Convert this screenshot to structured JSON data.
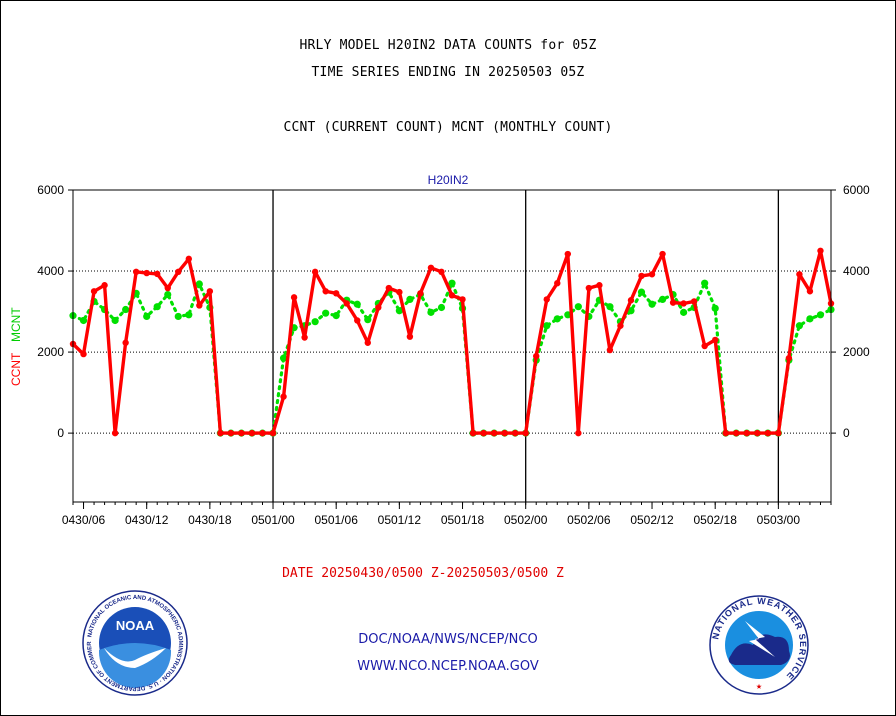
{
  "header": {
    "line1": "HRLY MODEL H20IN2 DATA COUNTS for 05Z",
    "line2": "TIME SERIES ENDING IN 20250503 05Z",
    "line3": "CCNT (CURRENT COUNT) MCNT (MONTHLY COUNT)"
  },
  "date_range": "DATE 20250430/0500 Z-20250503/0500 Z",
  "footer": {
    "line1": "DOC/NOAA/NWS/NCEP/NCO",
    "line2": "WWW.NCO.NCEP.NOAA.GOV"
  },
  "logos": {
    "noaa": {
      "center_text": "NOAA",
      "ring_text": "NATIONAL OCEANIC AND ATMOSPHERIC ADMINISTRATION · U.S. DEPARTMENT OF COMMERCE"
    },
    "nws": {
      "ring_text": "NATIONAL WEATHER SERVICE"
    }
  },
  "colors": {
    "ccnt": "#ff0000",
    "mcnt": "#00e000",
    "title": "#1a1aa8",
    "date": "#e00000"
  },
  "chart_data": {
    "type": "line",
    "title": "H20IN2",
    "ylabel_ccnt": "CCNT",
    "ylabel_mcnt": "MCNT",
    "ylim": [
      -1700,
      6000
    ],
    "yticks": [
      0,
      2000,
      4000,
      6000
    ],
    "gridlines_y": [
      2000,
      4000
    ],
    "x_start": "0430/05",
    "x_end": "0503/05",
    "xlim_hours": [
      0,
      72
    ],
    "day_dividers_hours": [
      19,
      43,
      67
    ],
    "xticks": [
      {
        "label": "0430/06",
        "hour": 1
      },
      {
        "label": "0430/12",
        "hour": 7
      },
      {
        "label": "0430/18",
        "hour": 13
      },
      {
        "label": "0501/00",
        "hour": 19
      },
      {
        "label": "0501/06",
        "hour": 25
      },
      {
        "label": "0501/12",
        "hour": 31
      },
      {
        "label": "0501/18",
        "hour": 37
      },
      {
        "label": "0502/00",
        "hour": 43
      },
      {
        "label": "0502/06",
        "hour": 49
      },
      {
        "label": "0502/12",
        "hour": 55
      },
      {
        "label": "0502/18",
        "hour": 61
      },
      {
        "label": "0503/00",
        "hour": 67
      }
    ],
    "series": [
      {
        "name": "CCNT",
        "values": [
          2200,
          1950,
          3500,
          3650,
          0,
          2230,
          3980,
          3950,
          3930,
          3580,
          3980,
          4300,
          3150,
          3500,
          0,
          0,
          0,
          0,
          0,
          0,
          900,
          3350,
          2360,
          3980,
          3500,
          3450,
          3200,
          2780,
          2230,
          3100,
          3580,
          3480,
          2380,
          3450,
          4080,
          3980,
          3400,
          3300,
          0,
          0,
          0,
          0,
          0,
          0,
          1900,
          3300,
          3700,
          4420,
          0,
          3580,
          3650,
          2050,
          2650,
          3280,
          3880,
          3920,
          4420,
          3220,
          3200,
          3250,
          2150,
          2300,
          0,
          0,
          0,
          0,
          0,
          0,
          1850,
          3920,
          3500,
          4500,
          3200
        ]
      },
      {
        "name": "MCNT",
        "values": [
          2900,
          2780,
          3250,
          3050,
          2780,
          3050,
          3450,
          2880,
          3120,
          3420,
          2880,
          2920,
          3680,
          3100,
          0,
          0,
          0,
          0,
          0,
          0,
          1850,
          2600,
          2650,
          2750,
          2960,
          2900,
          3280,
          3180,
          2800,
          3200,
          3480,
          3020,
          3300,
          3420,
          2980,
          3100,
          3700,
          3080,
          0,
          0,
          0,
          0,
          0,
          0,
          1800,
          2650,
          2820,
          2920,
          3120,
          2880,
          3280,
          3120,
          2750,
          3020,
          3480,
          3180,
          3300,
          3420,
          2980,
          3100,
          3700,
          3080,
          0,
          0,
          0,
          0,
          0,
          0,
          1800,
          2650,
          2820,
          2920,
          3050
        ]
      }
    ]
  }
}
